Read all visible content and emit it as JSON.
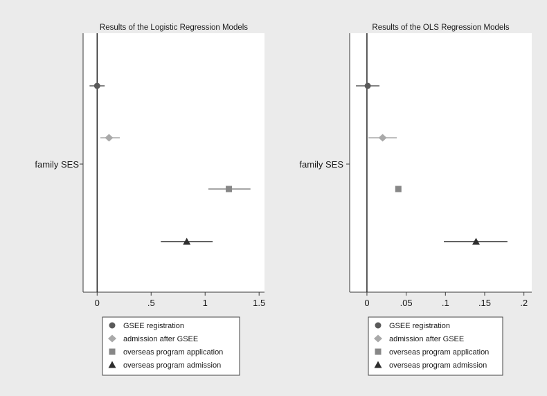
{
  "legend_items": [
    {
      "label": "GSEE registration",
      "marker": "circle",
      "color": "#5a5a5a"
    },
    {
      "label": "admission after GSEE",
      "marker": "diamond",
      "color": "#a9a9a9"
    },
    {
      "label": "overseas program application",
      "marker": "square",
      "color": "#878787"
    },
    {
      "label": "overseas program admission",
      "marker": "triangle",
      "color": "#2e2e2e"
    }
  ],
  "colors": {
    "outer_background": "#ebebeb",
    "plot_background": "#ffffff",
    "axis": "#3a3a3a"
  },
  "chart_data": [
    {
      "type": "scatter",
      "subtype": "coefficient-plot",
      "title": "Results of the Logistic Regression Models",
      "ylabel_tick": "family SES",
      "xlim": [
        -0.13,
        1.55
      ],
      "xticks": [
        {
          "value": 0,
          "label": "0"
        },
        {
          "value": 0.5,
          "label": ".5"
        },
        {
          "value": 1,
          "label": "1"
        },
        {
          "value": 1.5,
          "label": "1.5"
        }
      ],
      "reference_line": 0,
      "series": [
        {
          "name": "GSEE registration",
          "estimate": 0.0,
          "ci": [
            -0.07,
            0.07
          ]
        },
        {
          "name": "admission after GSEE",
          "estimate": 0.11,
          "ci": [
            0.03,
            0.21
          ]
        },
        {
          "name": "overseas program application",
          "estimate": 1.22,
          "ci": [
            1.03,
            1.42
          ]
        },
        {
          "name": "overseas program admission",
          "estimate": 0.83,
          "ci": [
            0.59,
            1.07
          ]
        }
      ],
      "legend": "bottom"
    },
    {
      "type": "scatter",
      "subtype": "coefficient-plot",
      "title": "Results of the OLS Regression Models",
      "ylabel_tick": "family SES",
      "xlim": [
        -0.022,
        0.21
      ],
      "xticks": [
        {
          "value": 0,
          "label": "0"
        },
        {
          "value": 0.05,
          "label": ".05"
        },
        {
          "value": 0.1,
          "label": ".1"
        },
        {
          "value": 0.15,
          "label": ".15"
        },
        {
          "value": 0.2,
          "label": ".2"
        }
      ],
      "reference_line": 0,
      "series": [
        {
          "name": "GSEE registration",
          "estimate": 0.001,
          "ci": [
            -0.014,
            0.016
          ]
        },
        {
          "name": "admission after GSEE",
          "estimate": 0.02,
          "ci": [
            0.002,
            0.038
          ]
        },
        {
          "name": "overseas program application",
          "estimate": 0.04,
          "ci": [
            0.037,
            0.043
          ]
        },
        {
          "name": "overseas program admission",
          "estimate": 0.139,
          "ci": [
            0.098,
            0.179
          ]
        }
      ],
      "legend": "bottom"
    }
  ]
}
